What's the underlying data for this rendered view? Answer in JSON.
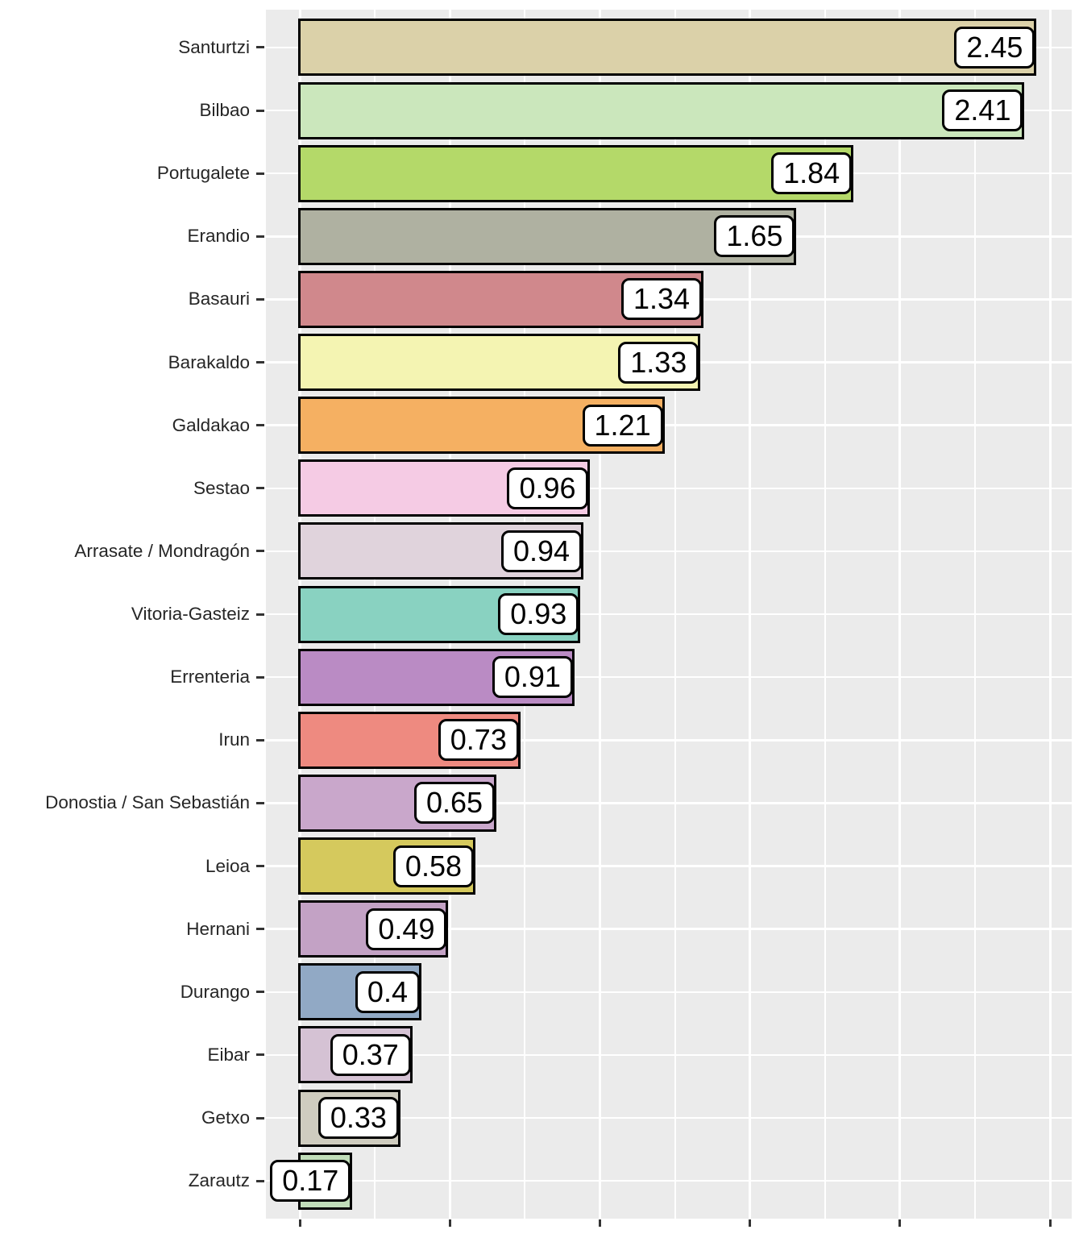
{
  "chart_data": {
    "type": "bar",
    "orientation": "horizontal",
    "title": "",
    "xlabel": "",
    "ylabel": "",
    "categories": [
      "Santurtzi",
      "Bilbao",
      "Portugalete",
      "Erandio",
      "Basauri",
      "Barakaldo",
      "Galdakao",
      "Sestao",
      "Arrasate / Mondragón",
      "Vitoria-Gasteiz",
      "Errenteria",
      "Irun",
      "Donostia / San Sebastián",
      "Leioa",
      "Hernani",
      "Durango",
      "Eibar",
      "Getxo",
      "Zarautz"
    ],
    "values": [
      2.45,
      2.41,
      1.84,
      1.65,
      1.34,
      1.33,
      1.21,
      0.96,
      0.94,
      0.93,
      0.91,
      0.73,
      0.65,
      0.58,
      0.49,
      0.4,
      0.37,
      0.33,
      0.17
    ],
    "value_labels": [
      "2.45",
      "2.41",
      "1.84",
      "1.65",
      "1.34",
      "1.33",
      "1.21",
      "0.96",
      "0.94",
      "0.93",
      "0.91",
      "0.73",
      "0.65",
      "0.58",
      "0.49",
      "0.4",
      "0.37",
      "0.33",
      "0.17"
    ],
    "bar_colors": [
      "#DBD1A9",
      "#CBE7BC",
      "#B4D969",
      "#AFB1A1",
      "#D0888C",
      "#F4F4B2",
      "#F5B062",
      "#F5CBE4",
      "#E0D3DC",
      "#89D2C1",
      "#BA8BC4",
      "#EE8A80",
      "#C9A7CB",
      "#D5C95D",
      "#C3A2C5",
      "#91A9C5",
      "#D5C2D4",
      "#CFCCBF",
      "#C1DDB9"
    ],
    "xlim": [
      -0.1225,
      2.5725
    ],
    "x_major_gridlines": [
      0,
      0.5,
      1.0,
      1.5,
      2.0,
      2.5
    ],
    "x_minor_gridlines": [
      0.25,
      0.75,
      1.25,
      1.75,
      2.25
    ],
    "x_tick_values": [
      0,
      0.5,
      1.0,
      1.5,
      2.0,
      2.5
    ],
    "x_tick_labels": [],
    "legend_position": "none",
    "grid": "on",
    "panel_background": "#EBEBEB",
    "gridline_color": "#FFFFFF",
    "bar_outline_color": "#000000",
    "value_label_style": {
      "background": "#FFFFFF",
      "border": "#000000",
      "text_color": "#000000"
    }
  }
}
